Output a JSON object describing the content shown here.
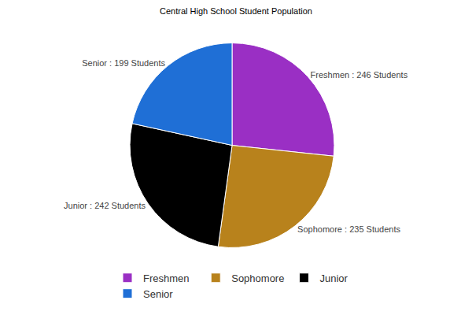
{
  "chart_data": {
    "type": "pie",
    "title": "Central High School Student Population",
    "categories": [
      "Freshmen",
      "Sophomore",
      "Junior",
      "Senior"
    ],
    "values": [
      246,
      235,
      242,
      199
    ],
    "value_labels": [
      "Freshmen : 246 Students",
      "Sophomore : 235 Students",
      "Junior : 242 Students",
      "Senior : 199 Students"
    ],
    "colors": [
      "#9a2fc4",
      "#b8821c",
      "#000000",
      "#1f6fd6"
    ],
    "data_labels": true,
    "legend": "bottom"
  }
}
